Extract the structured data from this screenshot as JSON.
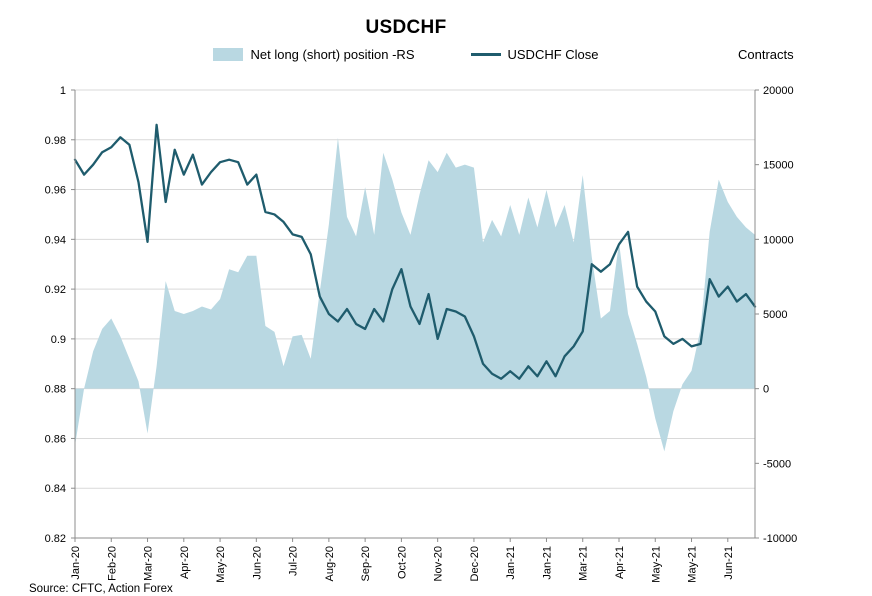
{
  "title": "USDCHF",
  "source": "Source: CFTC, Action Forex",
  "legend": [
    {
      "label": "Net long (short) position -RS",
      "type": "area"
    },
    {
      "label": "USDCHF Close",
      "type": "line"
    }
  ],
  "chart_data": {
    "type": "line+area",
    "title": "USDCHF",
    "legend_position": "top",
    "grid": true,
    "colors": {
      "area": "#b9d8e2",
      "line": "#1f5c6d",
      "grid": "#d9d9d9",
      "axis": "#8c8c8c"
    },
    "x_labels": [
      "Jan-20",
      "Feb-20",
      "Mar-20",
      "Apr-20",
      "May-20",
      "Jun-20",
      "Jul-20",
      "Aug-20",
      "Sep-20",
      "Oct-20",
      "Nov-20",
      "Dec-20",
      "Jan-21",
      "Jan-21",
      "Mar-21",
      "Apr-21",
      "May-21",
      "May-21",
      "Jun-21"
    ],
    "label_every": 4,
    "left_axis": {
      "min": 0.82,
      "max": 1.0,
      "tick_values": [
        1,
        0.98,
        0.96,
        0.94,
        0.92,
        0.9,
        0.88,
        0.86,
        0.84,
        0.82
      ],
      "tick_labels": [
        "1",
        "0.98",
        "0.96",
        "0.94",
        "0.92",
        "0.9",
        "0.88",
        "0.86",
        "0.84",
        "0.82"
      ]
    },
    "right_axis": {
      "min": -10000,
      "max": 20000,
      "tick_values": [
        20000,
        15000,
        10000,
        5000,
        0,
        -5000,
        -10000
      ],
      "tick_labels": [
        "20000",
        "15000",
        "10000",
        "5000",
        "0",
        "-5000",
        "-10000"
      ],
      "title": "Contracts"
    },
    "series": [
      {
        "name": "Net long (short) position -RS",
        "axis": "right",
        "type": "area",
        "color": "#b9d8e2",
        "values": [
          -3800,
          0,
          2500,
          4000,
          4700,
          3500,
          2000,
          500,
          -3000,
          1500,
          7200,
          5200,
          5000,
          5200,
          5500,
          5300,
          6000,
          8000,
          7800,
          8900,
          8900,
          4200,
          3800,
          1500,
          3500,
          3600,
          2000,
          6500,
          11000,
          16800,
          11500,
          10200,
          13500,
          10300,
          15800,
          14000,
          11800,
          10300,
          13000,
          15300,
          14500,
          15800,
          14800,
          15000,
          14800,
          9800,
          11300,
          10200,
          12300,
          10300,
          12800,
          10800,
          13300,
          10800,
          12300,
          9800,
          14300,
          8800,
          4700,
          5200,
          9800,
          5000,
          3000,
          800,
          -2000,
          -4200,
          -1500,
          300,
          1200,
          4000,
          10500,
          14000,
          12500,
          11500,
          10800,
          10300
        ]
      },
      {
        "name": "USDCHF Close",
        "axis": "left",
        "type": "line",
        "color": "#1f5c6d",
        "values": [
          0.972,
          0.966,
          0.97,
          0.975,
          0.977,
          0.981,
          0.978,
          0.963,
          0.939,
          0.986,
          0.955,
          0.976,
          0.966,
          0.974,
          0.962,
          0.967,
          0.971,
          0.972,
          0.971,
          0.962,
          0.966,
          0.951,
          0.95,
          0.947,
          0.942,
          0.941,
          0.934,
          0.917,
          0.91,
          0.907,
          0.912,
          0.906,
          0.904,
          0.912,
          0.907,
          0.92,
          0.928,
          0.913,
          0.906,
          0.918,
          0.9,
          0.912,
          0.911,
          0.909,
          0.901,
          0.89,
          0.886,
          0.884,
          0.887,
          0.884,
          0.889,
          0.885,
          0.891,
          0.885,
          0.893,
          0.897,
          0.903,
          0.93,
          0.927,
          0.93,
          0.938,
          0.943,
          0.921,
          0.915,
          0.911,
          0.901,
          0.898,
          0.9,
          0.897,
          0.898,
          0.924,
          0.917,
          0.921,
          0.915,
          0.918,
          0.913
        ]
      }
    ]
  }
}
